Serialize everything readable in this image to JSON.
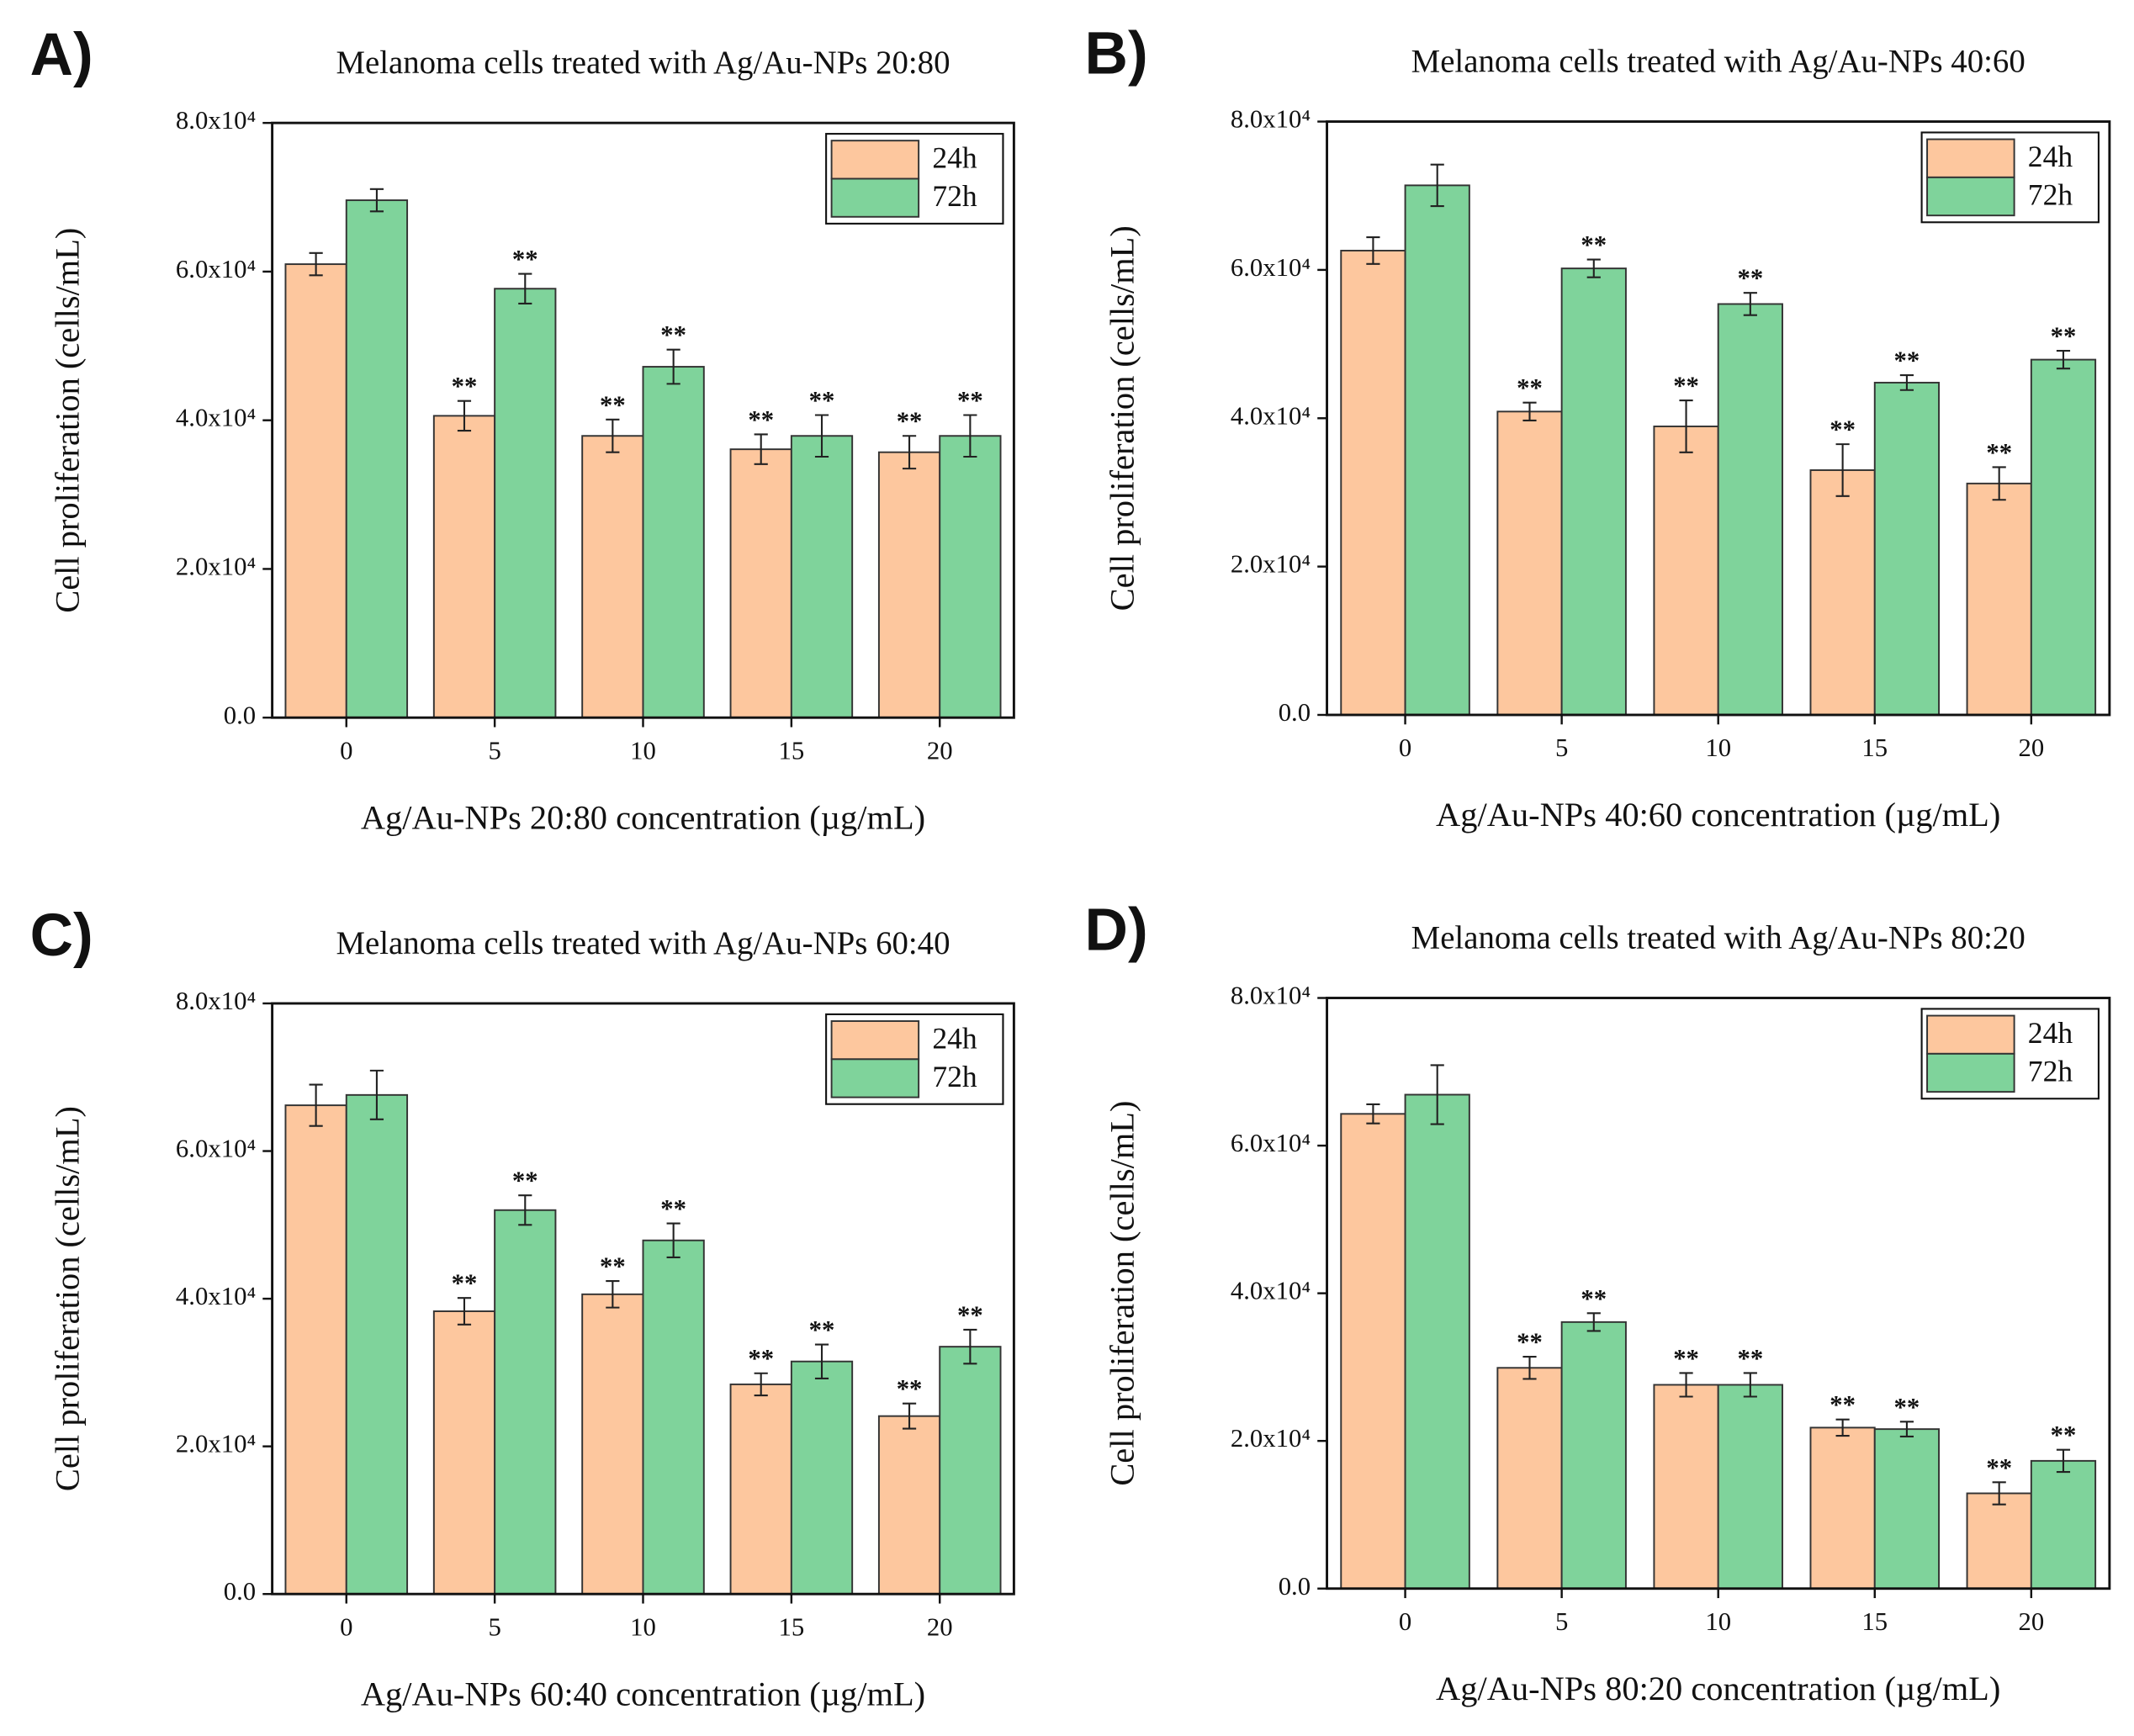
{
  "chart_data": [
    {
      "type": "bar",
      "panel": "A)",
      "title": "Melanoma cells treated with Ag/Au-NPs 20:80",
      "x_label": "Ag/Au-NPs 20:80 concentration (µg/mL)",
      "y_label": "Cell proliferation (cells/mL)",
      "categories": [
        "0",
        "5",
        "10",
        "15",
        "20"
      ],
      "ylim": [
        0,
        80000
      ],
      "yticks": [
        {
          "value": 0,
          "label": "0.0"
        },
        {
          "value": 20000,
          "label": "2.0x10⁴"
        },
        {
          "value": 40000,
          "label": "4.0x10⁴"
        },
        {
          "value": 60000,
          "label": "6.0x10⁴"
        },
        {
          "value": 80000,
          "label": "8.0x10⁴"
        }
      ],
      "legend": "upper right",
      "series": [
        {
          "name": "24h",
          "color": "#fdc79e",
          "values": [
            61000,
            40600,
            37900,
            36100,
            35700
          ],
          "errors": [
            1500,
            2000,
            2200,
            2000,
            2200
          ],
          "significance": [
            null,
            "**",
            "**",
            "**",
            "**"
          ]
        },
        {
          "name": "72h",
          "color": "#7fd39b",
          "values": [
            69600,
            57700,
            47200,
            37900,
            37900
          ],
          "errors": [
            1500,
            2000,
            2300,
            2800,
            2800
          ],
          "significance": [
            null,
            "**",
            "**",
            "**",
            "**"
          ]
        }
      ]
    },
    {
      "type": "bar",
      "panel": "B)",
      "title": "Melanoma cells treated with Ag/Au-NPs 40:60",
      "x_label": "Ag/Au-NPs 40:60 concentration (µg/mL)",
      "y_label": "Cell proliferation (cells/mL)",
      "categories": [
        "0",
        "5",
        "10",
        "15",
        "20"
      ],
      "ylim": [
        0,
        80000
      ],
      "yticks": [
        {
          "value": 0,
          "label": "0.0"
        },
        {
          "value": 20000,
          "label": "2.0x10⁴"
        },
        {
          "value": 40000,
          "label": "4.0x10⁴"
        },
        {
          "value": 60000,
          "label": "6.0x10⁴"
        },
        {
          "value": 80000,
          "label": "8.0x10⁴"
        }
      ],
      "legend": "upper right",
      "series": [
        {
          "name": "24h",
          "color": "#fdc79e",
          "values": [
            62600,
            40900,
            38900,
            33000,
            31200
          ],
          "errors": [
            1800,
            1200,
            3500,
            3500,
            2200
          ],
          "significance": [
            null,
            "**",
            "**",
            "**",
            "**"
          ]
        },
        {
          "name": "72h",
          "color": "#7fd39b",
          "values": [
            71400,
            60200,
            55400,
            44800,
            47900
          ],
          "errors": [
            2800,
            1200,
            1500,
            1000,
            1200
          ],
          "significance": [
            null,
            "**",
            "**",
            "**",
            "**"
          ]
        }
      ]
    },
    {
      "type": "bar",
      "panel": "C)",
      "title": "Melanoma cells treated with Ag/Au-NPs 60:40",
      "x_label": "Ag/Au-NPs 60:40 concentration (µg/mL)",
      "y_label": "Cell proliferation (cells/mL)",
      "categories": [
        "0",
        "5",
        "10",
        "15",
        "20"
      ],
      "ylim": [
        0,
        80000
      ],
      "yticks": [
        {
          "value": 0,
          "label": "0.0"
        },
        {
          "value": 20000,
          "label": "2.0x10⁴"
        },
        {
          "value": 40000,
          "label": "4.0x10⁴"
        },
        {
          "value": 60000,
          "label": "6.0x10⁴"
        },
        {
          "value": 80000,
          "label": "8.0x10⁴"
        }
      ],
      "legend": "upper right",
      "series": [
        {
          "name": "24h",
          "color": "#fdc79e",
          "values": [
            66200,
            38300,
            40600,
            28400,
            24100
          ],
          "errors": [
            2800,
            1800,
            1800,
            1500,
            1700
          ],
          "significance": [
            null,
            "**",
            "**",
            "**",
            "**"
          ]
        },
        {
          "name": "72h",
          "color": "#7fd39b",
          "values": [
            67600,
            52000,
            47900,
            31500,
            33500
          ],
          "errors": [
            3300,
            2000,
            2300,
            2300,
            2300
          ],
          "significance": [
            null,
            "**",
            "**",
            "**",
            "**"
          ]
        }
      ]
    },
    {
      "type": "bar",
      "panel": "D)",
      "title": "Melanoma cells treated with Ag/Au-NPs 80:20",
      "x_label": "Ag/Au-NPs 80:20 concentration (µg/mL)",
      "y_label": "Cell proliferation (cells/mL)",
      "categories": [
        "0",
        "5",
        "10",
        "15",
        "20"
      ],
      "ylim": [
        0,
        80000
      ],
      "yticks": [
        {
          "value": 0,
          "label": "0.0"
        },
        {
          "value": 20000,
          "label": "2.0x10⁴"
        },
        {
          "value": 40000,
          "label": "4.0x10⁴"
        },
        {
          "value": 60000,
          "label": "6.0x10⁴"
        },
        {
          "value": 80000,
          "label": "8.0x10⁴"
        }
      ],
      "legend": "upper right",
      "series": [
        {
          "name": "24h",
          "color": "#fdc79e",
          "values": [
            64300,
            29900,
            27600,
            21800,
            12900
          ],
          "errors": [
            1300,
            1500,
            1600,
            1100,
            1500
          ],
          "significance": [
            null,
            "**",
            "**",
            "**",
            "**"
          ]
        },
        {
          "name": "72h",
          "color": "#7fd39b",
          "values": [
            66900,
            36100,
            27600,
            21600,
            17300
          ],
          "errors": [
            4000,
            1200,
            1600,
            1000,
            1500
          ],
          "significance": [
            null,
            "**",
            "**",
            "**",
            "**"
          ]
        }
      ]
    }
  ]
}
